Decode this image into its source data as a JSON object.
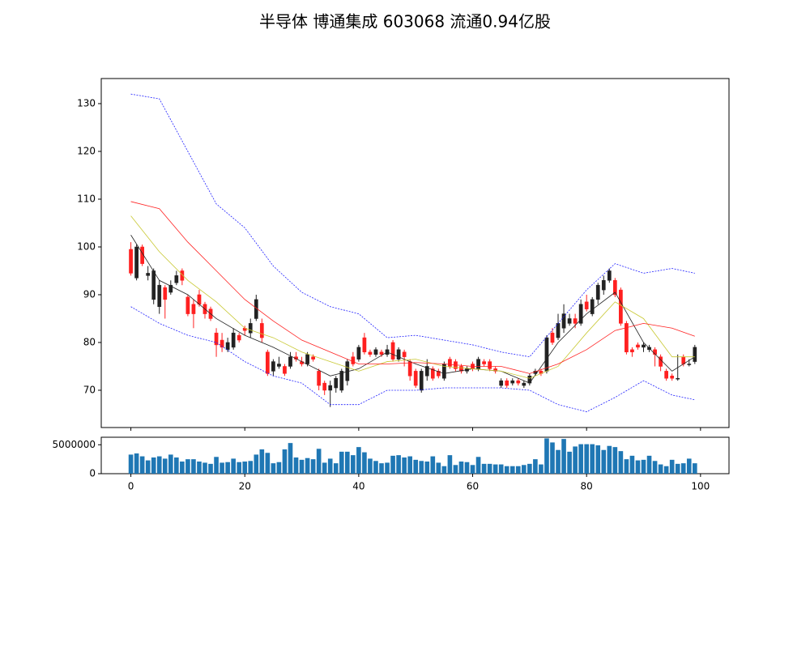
{
  "chart_data": [
    {
      "type": "candlestick",
      "title": "半导体 博通集成 603068 流通0.94亿股",
      "up_color": "#222222",
      "down_color": "#ff2020",
      "xlim": [
        -5.2,
        105
      ],
      "ylim": [
        62.2,
        135.25
      ],
      "yticks": [
        70,
        80,
        90,
        100,
        110,
        120,
        130
      ],
      "xticks": [
        0,
        20,
        40,
        60,
        80,
        100
      ],
      "open": [
        99.5,
        93.5,
        100,
        94,
        89,
        87.5,
        91.5,
        90.5,
        92.5,
        95,
        89.5,
        88,
        90,
        88,
        87,
        82,
        80.5,
        78.5,
        79,
        81.5,
        83,
        82,
        85,
        84,
        78,
        74,
        75,
        75,
        75,
        77,
        76,
        75.5,
        77,
        74,
        71.5,
        70,
        70.5,
        70,
        72,
        77,
        76.5,
        81,
        78,
        77.5,
        78,
        77.5,
        80,
        76.5,
        78,
        76,
        74,
        70,
        73,
        74.5,
        74,
        72.5,
        76.5,
        76,
        75,
        74,
        75.5,
        74.5,
        76,
        76,
        74.5,
        71,
        72,
        71.5,
        72,
        71,
        71.5,
        73.5,
        74,
        74,
        82,
        81,
        83,
        84,
        85,
        84,
        88.5,
        86,
        89,
        91,
        93,
        93,
        91,
        84,
        78.5,
        79.5,
        79,
        78.5,
        78.5,
        77,
        74,
        73,
        72.5,
        77,
        75.5,
        76
      ],
      "high": [
        101,
        100.5,
        100.5,
        96,
        95.5,
        93,
        92,
        93,
        95,
        95.5,
        90,
        89,
        91,
        88.5,
        87.5,
        83,
        82,
        81,
        83,
        82,
        83.5,
        85,
        90,
        85,
        78.5,
        76.5,
        77,
        75.5,
        78,
        78,
        77,
        78,
        77.5,
        74.5,
        72,
        72,
        73,
        74.5,
        76.5,
        78,
        79.5,
        82,
        78.5,
        79,
        78.5,
        79.5,
        80.5,
        79,
        78.5,
        76.5,
        74.5,
        74.5,
        76.5,
        75,
        74.5,
        76,
        77,
        76.5,
        75.5,
        75,
        76,
        77,
        76.5,
        76.5,
        75,
        72.5,
        72.5,
        72.5,
        72.5,
        72,
        73.5,
        74.5,
        74.5,
        81.5,
        83,
        86,
        88,
        86,
        86,
        89,
        90,
        89.5,
        92.5,
        94,
        95.5,
        93.5,
        91.5,
        84.5,
        79,
        80,
        80,
        79.5,
        79,
        77.5,
        74.5,
        73.5,
        77.5,
        77.5,
        76.5,
        79.5
      ],
      "low": [
        94,
        93,
        96,
        93,
        88,
        86,
        85,
        90,
        92,
        92,
        85.5,
        83,
        87.5,
        85,
        84.5,
        77,
        78,
        78,
        78.5,
        80,
        81.5,
        81,
        84.5,
        80,
        73,
        73,
        74.5,
        73,
        74.5,
        76,
        75,
        75,
        76,
        70,
        69,
        66.5,
        69.5,
        69.5,
        71,
        75,
        76,
        77.5,
        77,
        77,
        77,
        77,
        76,
        76,
        75,
        72,
        70.5,
        69.5,
        72,
        72,
        72.5,
        72,
        74.5,
        74,
        73.5,
        73.5,
        74,
        74,
        75,
        74,
        73.5,
        70.5,
        70.5,
        71,
        71,
        70.5,
        71,
        73,
        73,
        73.5,
        79.5,
        80.5,
        82,
        83.5,
        83,
        83.5,
        86.5,
        85.5,
        88,
        90,
        92.5,
        89.5,
        83.5,
        77.5,
        77,
        78.5,
        78,
        78,
        75,
        74,
        72,
        72,
        72,
        75,
        75,
        75.5
      ],
      "close": [
        94.5,
        100,
        96.5,
        94.5,
        95,
        92,
        89,
        92,
        94,
        93,
        86,
        86,
        88,
        86,
        85,
        79.5,
        79,
        80,
        82,
        80.5,
        82.5,
        84,
        89,
        81,
        73.5,
        76,
        75.5,
        73.5,
        77,
        76.5,
        75.5,
        77.5,
        76.5,
        71,
        70,
        71,
        72.5,
        74,
        76,
        75.5,
        79,
        78,
        77.5,
        78.5,
        77.5,
        78.5,
        76.5,
        78.5,
        77,
        73,
        71,
        74,
        75,
        72.5,
        73,
        75.5,
        75,
        74.5,
        74,
        74.5,
        74.5,
        76.5,
        75.5,
        74.5,
        74,
        72,
        71,
        72,
        71.5,
        71.5,
        73,
        74,
        73.5,
        81,
        80,
        84,
        86,
        85,
        84,
        88,
        87,
        89,
        92,
        93,
        95,
        90,
        84,
        78,
        78,
        79,
        79.5,
        79,
        77.5,
        75,
        72.5,
        72.5,
        72.5,
        75.5,
        75.5,
        79
      ],
      "series": [
        {
          "color": "#222222",
          "style": "solid",
          "x": [
            0,
            5,
            10,
            15,
            20,
            25,
            30,
            35,
            40,
            45,
            50,
            55,
            60,
            65,
            70,
            75,
            80,
            85,
            90,
            95,
            99
          ],
          "values": [
            102.5,
            93,
            90,
            85,
            81.5,
            79,
            76,
            73,
            74.5,
            78,
            75.5,
            73.5,
            74.5,
            74,
            71.5,
            80,
            86,
            90.5,
            80,
            74,
            77
          ]
        },
        {
          "color": "#c8c832",
          "style": "solid",
          "x": [
            0,
            5,
            10,
            15,
            20,
            25,
            30,
            35,
            40,
            45,
            50,
            55,
            60,
            65,
            70,
            75,
            80,
            85,
            90,
            95,
            99
          ],
          "values": [
            106.5,
            99,
            93,
            88.5,
            83,
            81,
            78,
            76,
            74,
            76,
            76.5,
            75,
            74.5,
            74,
            72.5,
            75,
            82,
            88.5,
            85,
            77,
            77
          ]
        },
        {
          "color": "#ff2020",
          "style": "solid",
          "x": [
            0,
            5,
            10,
            15,
            20,
            25,
            30,
            35,
            40,
            45,
            50,
            55,
            60,
            65,
            70,
            75,
            80,
            85,
            90,
            95,
            99
          ],
          "values": [
            109.5,
            108,
            101,
            95,
            89,
            84.5,
            80.5,
            78,
            75.5,
            75.5,
            75.8,
            75.5,
            75,
            75,
            73.5,
            75.5,
            78.5,
            82.5,
            84,
            83,
            81.3
          ]
        },
        {
          "color": "#2020ff",
          "style": "dashed",
          "x": [
            0,
            5,
            10,
            15,
            20,
            25,
            30,
            35,
            40,
            45,
            50,
            55,
            60,
            65,
            70,
            75,
            80,
            85,
            90,
            95,
            99
          ],
          "values": [
            132,
            131,
            120,
            109,
            104,
            96,
            90.5,
            87.5,
            86,
            81,
            81.5,
            80.5,
            79.5,
            78,
            77,
            84,
            91,
            96.5,
            94.5,
            95.5,
            94.5
          ]
        },
        {
          "color": "#2020ff",
          "style": "dashed",
          "x": [
            0,
            5,
            10,
            15,
            20,
            25,
            30,
            35,
            40,
            45,
            50,
            55,
            60,
            65,
            70,
            75,
            80,
            85,
            90,
            95,
            99
          ],
          "values": [
            87.5,
            84,
            81.5,
            80,
            76,
            73,
            71.5,
            67,
            67,
            70,
            70,
            70.5,
            70.5,
            70.5,
            70,
            67,
            65.5,
            68.5,
            72,
            69,
            68
          ]
        }
      ]
    },
    {
      "type": "bar",
      "color": "#1f77b4",
      "xlim": [
        -5.2,
        105
      ],
      "ylim": [
        0,
        6300000
      ],
      "yticks": [
        0,
        5000000
      ],
      "xticks": [
        0,
        20,
        40,
        60,
        80,
        100
      ],
      "values": [
        3300000,
        3500000,
        3000000,
        2300000,
        2800000,
        3000000,
        2600000,
        3300000,
        2800000,
        2100000,
        2500000,
        2500000,
        2100000,
        1900000,
        1700000,
        2900000,
        1900000,
        2000000,
        2600000,
        2000000,
        2100000,
        2200000,
        3300000,
        4200000,
        3600000,
        1800000,
        2000000,
        4200000,
        5300000,
        2800000,
        2400000,
        2700000,
        2500000,
        4300000,
        1900000,
        2600000,
        1800000,
        3800000,
        3800000,
        3200000,
        4600000,
        3700000,
        2600000,
        2200000,
        1800000,
        1900000,
        3100000,
        3200000,
        2800000,
        3000000,
        2400000,
        2200000,
        2100000,
        3000000,
        1900000,
        1300000,
        3200000,
        1500000,
        2100000,
        2000000,
        1500000,
        2900000,
        1700000,
        1700000,
        1600000,
        1600000,
        1300000,
        1300000,
        1300000,
        1500000,
        1700000,
        2500000,
        1600000,
        6100000,
        5400000,
        4100000,
        6000000,
        3800000,
        4700000,
        5100000,
        5100000,
        5100000,
        4900000,
        4100000,
        4800000,
        4600000,
        3900000,
        2500000,
        3100000,
        2300000,
        2400000,
        3100000,
        2200000,
        1600000,
        1300000,
        2400000,
        1700000,
        1800000,
        2600000,
        1800000
      ]
    }
  ]
}
